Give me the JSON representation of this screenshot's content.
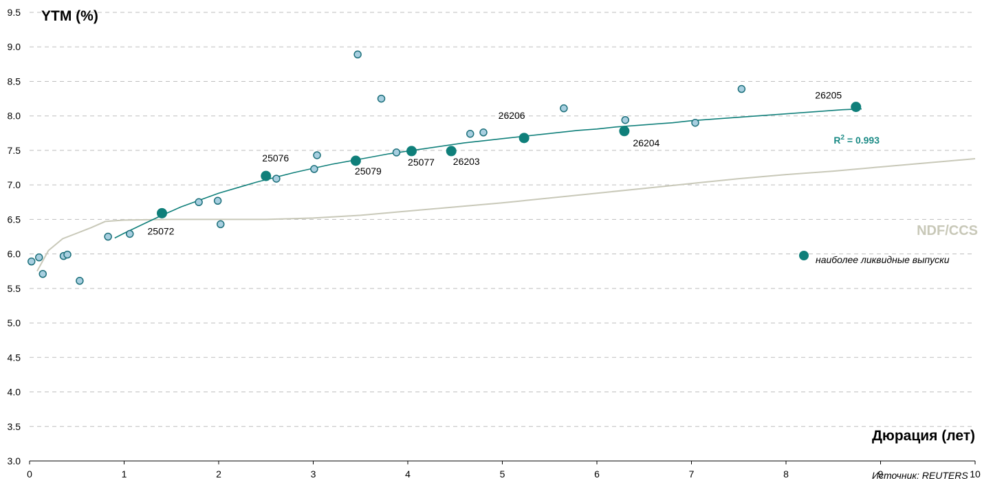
{
  "chart_data": {
    "type": "scatter",
    "ylabel": "YTM (%)",
    "xlabel": "Дюрация (лет)",
    "xlim": [
      0,
      10
    ],
    "ylim": [
      3.0,
      9.5
    ],
    "x_ticks": [
      "0",
      "1",
      "2",
      "3",
      "4",
      "5",
      "6",
      "7",
      "8",
      "9",
      "10"
    ],
    "y_ticks": [
      "3.0",
      "3.5",
      "4.0",
      "4.5",
      "5.0",
      "5.5",
      "6.0",
      "6.5",
      "7.0",
      "7.5",
      "8.0",
      "8.5",
      "9.0",
      "9.5"
    ],
    "grid": "horizontal-dashed",
    "colors": {
      "liquid": "#0f7f7a",
      "other_fill": "#a8cfe0",
      "other_stroke": "#1b6f7a",
      "trend": "#0f7f7a",
      "ndf": "#c8c8b8"
    },
    "series": [
      {
        "points": [
          [
            0.02,
            5.89
          ],
          [
            0.1,
            5.95
          ],
          [
            0.14,
            5.71
          ],
          [
            0.36,
            5.97
          ],
          [
            0.4,
            5.99
          ],
          [
            0.53,
            5.61
          ],
          [
            0.83,
            6.25
          ],
          [
            1.06,
            6.29
          ],
          [
            1.79,
            6.75
          ],
          [
            1.99,
            6.77
          ],
          [
            2.02,
            6.43
          ],
          [
            2.61,
            7.09
          ],
          [
            3.01,
            7.23
          ],
          [
            3.04,
            7.43
          ],
          [
            3.47,
            8.89
          ],
          [
            3.72,
            8.25
          ],
          [
            3.88,
            7.47
          ],
          [
            4.66,
            7.74
          ],
          [
            4.8,
            7.76
          ],
          [
            5.65,
            8.11
          ],
          [
            6.3,
            7.94
          ],
          [
            7.04,
            7.9
          ],
          [
            7.53,
            8.39
          ]
        ]
      },
      {
        "name": "наиболее ликвидные выпуски",
        "points": [
          {
            "x": 1.4,
            "y": 6.59,
            "label": "25072"
          },
          {
            "x": 2.5,
            "y": 7.13,
            "label": "25076"
          },
          {
            "x": 3.45,
            "y": 7.35,
            "label": "25079"
          },
          {
            "x": 4.04,
            "y": 7.49,
            "label": "25077"
          },
          {
            "x": 4.46,
            "y": 7.49,
            "label": "26203"
          },
          {
            "x": 5.23,
            "y": 7.68,
            "label": "26206"
          },
          {
            "x": 6.29,
            "y": 7.78,
            "label": "26204"
          },
          {
            "x": 8.74,
            "y": 8.13,
            "label": "26205"
          }
        ]
      }
    ],
    "trendline": {
      "r2_label": "R",
      "r2_sup": "2",
      "r2_value": " = 0.993",
      "points": [
        [
          0.9,
          6.23
        ],
        [
          1.0,
          6.3
        ],
        [
          1.2,
          6.43
        ],
        [
          1.4,
          6.56
        ],
        [
          1.6,
          6.68
        ],
        [
          1.8,
          6.78
        ],
        [
          2.0,
          6.88
        ],
        [
          2.2,
          6.96
        ],
        [
          2.4,
          7.04
        ],
        [
          2.6,
          7.11
        ],
        [
          2.8,
          7.18
        ],
        [
          3.0,
          7.24
        ],
        [
          3.2,
          7.3
        ],
        [
          3.4,
          7.35
        ],
        [
          3.6,
          7.4
        ],
        [
          3.8,
          7.45
        ],
        [
          4.0,
          7.49
        ],
        [
          4.2,
          7.53
        ],
        [
          4.4,
          7.57
        ],
        [
          4.6,
          7.61
        ],
        [
          4.8,
          7.64
        ],
        [
          5.0,
          7.67
        ],
        [
          5.2,
          7.7
        ],
        [
          5.4,
          7.73
        ],
        [
          5.6,
          7.76
        ],
        [
          5.8,
          7.79
        ],
        [
          6.0,
          7.81
        ],
        [
          6.2,
          7.84
        ],
        [
          6.4,
          7.86
        ],
        [
          6.6,
          7.88
        ],
        [
          6.8,
          7.9
        ],
        [
          7.0,
          7.93
        ],
        [
          7.2,
          7.95
        ],
        [
          7.4,
          7.97
        ],
        [
          7.6,
          7.99
        ],
        [
          7.8,
          8.01
        ],
        [
          8.0,
          8.03
        ],
        [
          8.2,
          8.05
        ],
        [
          8.4,
          8.07
        ],
        [
          8.6,
          8.09
        ],
        [
          8.8,
          8.1
        ]
      ]
    },
    "ndf_curve": {
      "label": "NDF/CCS",
      "points": [
        [
          0.08,
          5.75
        ],
        [
          0.2,
          6.05
        ],
        [
          0.35,
          6.22
        ],
        [
          0.5,
          6.3
        ],
        [
          0.65,
          6.38
        ],
        [
          0.8,
          6.47
        ],
        [
          1.0,
          6.49
        ],
        [
          1.5,
          6.5
        ],
        [
          2.0,
          6.5
        ],
        [
          2.5,
          6.5
        ],
        [
          3.0,
          6.52
        ],
        [
          3.5,
          6.56
        ],
        [
          4.0,
          6.62
        ],
        [
          4.5,
          6.68
        ],
        [
          5.0,
          6.74
        ],
        [
          5.5,
          6.81
        ],
        [
          6.0,
          6.88
        ],
        [
          6.5,
          6.95
        ],
        [
          7.0,
          7.02
        ],
        [
          7.5,
          7.09
        ],
        [
          8.0,
          7.15
        ],
        [
          8.5,
          7.2
        ],
        [
          9.0,
          7.26
        ],
        [
          9.5,
          7.32
        ],
        [
          10.0,
          7.38
        ]
      ]
    },
    "legend_label": "наиболее ликвидные выпуски",
    "source": "Источник: REUTERS"
  }
}
